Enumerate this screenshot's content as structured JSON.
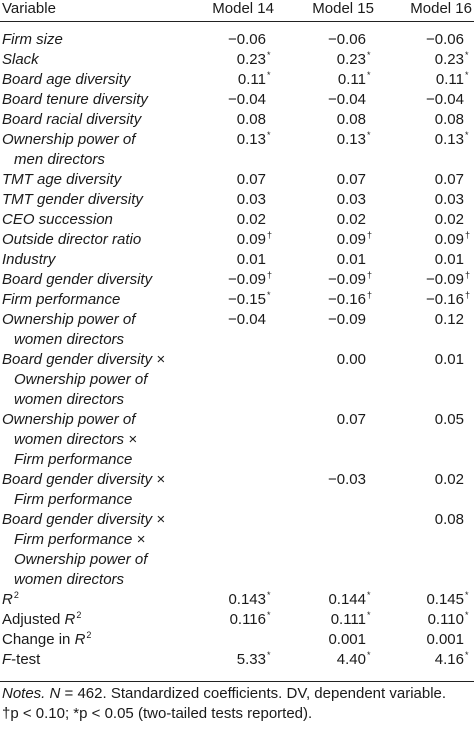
{
  "header": {
    "variable": "Variable",
    "models": [
      "Model 14",
      "Model 15",
      "Model 16"
    ]
  },
  "rows": [
    {
      "label": "Firm size",
      "italic": true,
      "indent": false,
      "v": [
        "−0.06",
        "−0.06",
        "−0.06"
      ],
      "s": [
        "",
        "",
        ""
      ]
    },
    {
      "label": "Slack",
      "italic": true,
      "indent": false,
      "v": [
        "0.23",
        "0.23",
        "0.23"
      ],
      "s": [
        "*",
        "*",
        "*"
      ]
    },
    {
      "label": "Board age diversity",
      "italic": true,
      "indent": false,
      "v": [
        "0.11",
        "0.11",
        "0.11"
      ],
      "s": [
        "*",
        "*",
        "*"
      ]
    },
    {
      "label": "Board tenure diversity",
      "italic": true,
      "indent": false,
      "v": [
        "−0.04",
        "−0.04",
        "−0.04"
      ],
      "s": [
        "",
        "",
        ""
      ]
    },
    {
      "label": "Board racial diversity",
      "italic": true,
      "indent": false,
      "v": [
        "0.08",
        "0.08",
        "0.08"
      ],
      "s": [
        "",
        "",
        ""
      ]
    },
    {
      "label": "Ownership power of",
      "italic": true,
      "indent": false,
      "v": [
        "0.13",
        "0.13",
        "0.13"
      ],
      "s": [
        "*",
        "*",
        "*"
      ]
    },
    {
      "label": "men directors",
      "italic": true,
      "indent": true,
      "v": [
        "",
        "",
        ""
      ],
      "s": [
        "",
        "",
        ""
      ]
    },
    {
      "label": "TMT age diversity",
      "italic": true,
      "indent": false,
      "v": [
        "0.07",
        "0.07",
        "0.07"
      ],
      "s": [
        "",
        "",
        ""
      ]
    },
    {
      "label": "TMT gender diversity",
      "italic": true,
      "indent": false,
      "v": [
        "0.03",
        "0.03",
        "0.03"
      ],
      "s": [
        "",
        "",
        ""
      ]
    },
    {
      "label": "CEO succession",
      "italic": true,
      "indent": false,
      "v": [
        "0.02",
        "0.02",
        "0.02"
      ],
      "s": [
        "",
        "",
        ""
      ]
    },
    {
      "label": "Outside director ratio",
      "italic": true,
      "indent": false,
      "v": [
        "0.09",
        "0.09",
        "0.09"
      ],
      "s": [
        "†",
        "†",
        "†"
      ]
    },
    {
      "label": "Industry",
      "italic": true,
      "indent": false,
      "v": [
        "0.01",
        "0.01",
        "0.01"
      ],
      "s": [
        "",
        "",
        ""
      ]
    },
    {
      "label": "Board gender diversity",
      "italic": true,
      "indent": false,
      "v": [
        "−0.09",
        "−0.09",
        "−0.09"
      ],
      "s": [
        "†",
        "†",
        "†"
      ]
    },
    {
      "label": "Firm performance",
      "italic": true,
      "indent": false,
      "v": [
        "−0.15",
        "−0.16",
        "−0.16"
      ],
      "s": [
        "*",
        "†",
        "†"
      ]
    },
    {
      "label": "Ownership power of",
      "italic": true,
      "indent": false,
      "v": [
        "−0.04",
        "−0.09",
        "0.12"
      ],
      "s": [
        "",
        "",
        ""
      ]
    },
    {
      "label": "women directors",
      "italic": true,
      "indent": true,
      "v": [
        "",
        "",
        ""
      ],
      "s": [
        "",
        "",
        ""
      ]
    },
    {
      "label": "Board gender diversity ×",
      "italic": true,
      "indent": false,
      "v": [
        "",
        "0.00",
        "0.01"
      ],
      "s": [
        "",
        "",
        ""
      ]
    },
    {
      "label": "Ownership power of",
      "italic": true,
      "indent": true,
      "v": [
        "",
        "",
        ""
      ],
      "s": [
        "",
        "",
        ""
      ]
    },
    {
      "label": "women directors",
      "italic": true,
      "indent": true,
      "v": [
        "",
        "",
        ""
      ],
      "s": [
        "",
        "",
        ""
      ]
    },
    {
      "label": "Ownership power of",
      "italic": true,
      "indent": false,
      "v": [
        "",
        "0.07",
        "0.05"
      ],
      "s": [
        "",
        "",
        ""
      ]
    },
    {
      "label": "women directors ×",
      "italic": true,
      "indent": true,
      "v": [
        "",
        "",
        ""
      ],
      "s": [
        "",
        "",
        ""
      ]
    },
    {
      "label": "Firm performance",
      "italic": true,
      "indent": true,
      "v": [
        "",
        "",
        ""
      ],
      "s": [
        "",
        "",
        ""
      ]
    },
    {
      "label": "Board gender diversity ×",
      "italic": true,
      "indent": false,
      "v": [
        "",
        "−0.03",
        "0.02"
      ],
      "s": [
        "",
        "",
        ""
      ]
    },
    {
      "label": "Firm performance",
      "italic": true,
      "indent": true,
      "v": [
        "",
        "",
        ""
      ],
      "s": [
        "",
        "",
        ""
      ]
    },
    {
      "label": "Board gender diversity ×",
      "italic": true,
      "indent": false,
      "v": [
        "",
        "",
        "0.08"
      ],
      "s": [
        "",
        "",
        ""
      ]
    },
    {
      "label": "Firm performance ×",
      "italic": true,
      "indent": true,
      "v": [
        "",
        "",
        ""
      ],
      "s": [
        "",
        "",
        ""
      ]
    },
    {
      "label": "Ownership power of",
      "italic": true,
      "indent": true,
      "v": [
        "",
        "",
        ""
      ],
      "s": [
        "",
        "",
        ""
      ]
    },
    {
      "label": "women directors",
      "italic": true,
      "indent": true,
      "v": [
        "",
        "",
        ""
      ],
      "s": [
        "",
        "",
        ""
      ]
    },
    {
      "label": "R",
      "sup": "2",
      "italic": true,
      "indent": false,
      "v": [
        "0.143",
        "0.144",
        "0.145"
      ],
      "s": [
        "*",
        "*",
        "*"
      ]
    },
    {
      "label": "Adjusted ",
      "label_italic_part": "R",
      "sup": "2",
      "italic": false,
      "indent": false,
      "v": [
        "0.116",
        "0.111",
        "0.110"
      ],
      "s": [
        "*",
        "*",
        "*"
      ]
    },
    {
      "label": "Change in ",
      "label_italic_part": "R",
      "sup": "2",
      "italic": false,
      "indent": false,
      "v": [
        "",
        "0.001",
        "0.001"
      ],
      "s": [
        "",
        "",
        ""
      ]
    },
    {
      "label": "F",
      "label_suffix": "-test",
      "italic": true,
      "indent": false,
      "v": [
        "5.33",
        "4.40",
        "4.16"
      ],
      "s": [
        "*",
        "*",
        "*"
      ]
    }
  ],
  "notes": {
    "line1_prefix": "Notes. ",
    "line1_n": "N",
    "line1_rest": " = 462. Standardized coefficients. DV, dependent variable.",
    "line2": "†p < 0.10; *p < 0.05 (two-tailed tests reported)."
  }
}
